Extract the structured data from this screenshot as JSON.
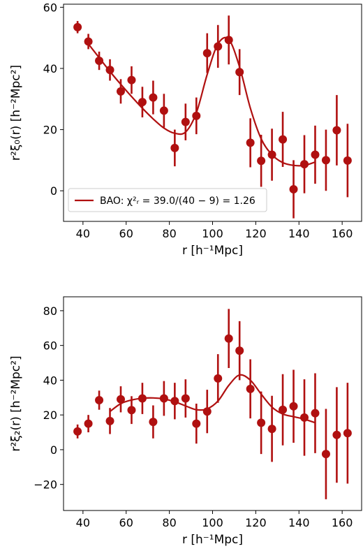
{
  "chart_data": [
    {
      "type": "scatter",
      "xlabel": "r [h⁻¹Mpc]",
      "ylabel": "r²ξ₀(r) [h⁻²Mpc²]",
      "xlim": [
        31,
        169
      ],
      "ylim": [
        -10,
        61
      ],
      "xticks": [
        40,
        60,
        80,
        100,
        120,
        140,
        160
      ],
      "yticks": [
        0,
        20,
        40,
        60
      ],
      "marker_color": "#b01010",
      "legend": {
        "location": "lower-left",
        "label": "BAO: χ²ᵣ = 39.0/(40 − 9) = 1.26"
      },
      "series": [
        {
          "kind": "points_with_errorbars",
          "x": [
            37.5,
            42.5,
            47.5,
            52.5,
            57.5,
            62.5,
            67.5,
            72.5,
            77.5,
            82.5,
            87.5,
            92.5,
            97.5,
            102.5,
            107.5,
            112.5,
            117.5,
            122.5,
            127.5,
            132.5,
            137.5,
            142.5,
            147.5,
            152.5,
            157.5,
            162.5
          ],
          "y": [
            53.5,
            48.8,
            42.5,
            39.5,
            32.5,
            36.2,
            29.0,
            30.5,
            26.2,
            14.0,
            22.5,
            24.5,
            45.0,
            47.2,
            49.3,
            38.8,
            15.7,
            9.8,
            11.8,
            16.8,
            0.5,
            8.7,
            11.8,
            10.0,
            19.8,
            9.9
          ],
          "yerr": [
            2.0,
            2.5,
            3.0,
            3.5,
            4.0,
            4.5,
            5.0,
            5.5,
            5.5,
            6.0,
            6.0,
            6.0,
            6.5,
            7.0,
            8.0,
            7.5,
            8.0,
            8.5,
            8.5,
            9.0,
            9.5,
            9.5,
            9.5,
            10.0,
            11.5,
            12.0
          ]
        },
        {
          "kind": "model_line",
          "label": "BAO",
          "x": [
            42.5,
            47.5,
            52.5,
            57.5,
            62.5,
            67.5,
            72.5,
            77.5,
            82.5,
            87.5,
            92.5,
            97.5,
            102.5,
            107.5,
            112.5,
            117.5,
            122.5,
            127.5,
            132.5,
            137.5,
            142.5,
            147.5
          ],
          "y": [
            48.0,
            43.5,
            39.0,
            34.8,
            30.8,
            27.0,
            23.5,
            20.5,
            18.8,
            19.2,
            25.5,
            38.0,
            48.0,
            49.5,
            40.5,
            27.0,
            17.0,
            11.8,
            9.2,
            8.3,
            8.3,
            9.4
          ]
        }
      ]
    },
    {
      "type": "scatter",
      "xlabel": "r [h⁻¹Mpc]",
      "ylabel": "r²ξ₂(r) [h⁻²Mpc²]",
      "xlim": [
        31,
        169
      ],
      "ylim": [
        -35,
        88
      ],
      "xticks": [
        40,
        60,
        80,
        100,
        120,
        140,
        160
      ],
      "yticks": [
        -20,
        0,
        20,
        40,
        60,
        80
      ],
      "marker_color": "#b01010",
      "series": [
        {
          "kind": "points_with_errorbars",
          "x": [
            37.5,
            42.5,
            47.5,
            52.5,
            57.5,
            62.5,
            67.5,
            72.5,
            77.5,
            82.5,
            87.5,
            92.5,
            97.5,
            102.5,
            107.5,
            112.5,
            117.5,
            122.5,
            127.5,
            132.5,
            137.5,
            142.5,
            147.5,
            152.5,
            157.5,
            162.5
          ],
          "y": [
            10.5,
            15.0,
            28.5,
            16.5,
            29.0,
            22.8,
            29.5,
            16.0,
            29.5,
            28.0,
            29.5,
            15.0,
            22.0,
            41.0,
            64.0,
            57.0,
            35.0,
            15.5,
            12.0,
            23.0,
            25.0,
            18.5,
            21.0,
            -2.5,
            8.5,
            9.5
          ],
          "yerr": [
            4.0,
            5.0,
            5.5,
            7.5,
            7.5,
            8.0,
            9.0,
            9.5,
            10.0,
            10.5,
            11.0,
            11.5,
            12.5,
            14.0,
            17.0,
            17.0,
            17.0,
            18.0,
            19.0,
            20.5,
            21.0,
            22.0,
            23.0,
            26.0,
            27.5,
            29.0
          ]
        },
        {
          "kind": "model_line",
          "label": "BAO",
          "x": [
            52.5,
            57.5,
            62.5,
            67.5,
            72.5,
            77.5,
            82.5,
            87.5,
            92.5,
            97.5,
            102.5,
            107.5,
            112.5,
            117.5,
            122.5,
            127.5,
            132.5,
            137.5,
            142.5,
            147.5
          ],
          "y": [
            22.0,
            26.5,
            28.6,
            29.6,
            29.8,
            29.2,
            27.6,
            25.2,
            23.0,
            23.5,
            28.0,
            37.0,
            43.0,
            40.0,
            32.0,
            24.5,
            20.5,
            19.0,
            17.6,
            15.5
          ]
        }
      ]
    }
  ]
}
